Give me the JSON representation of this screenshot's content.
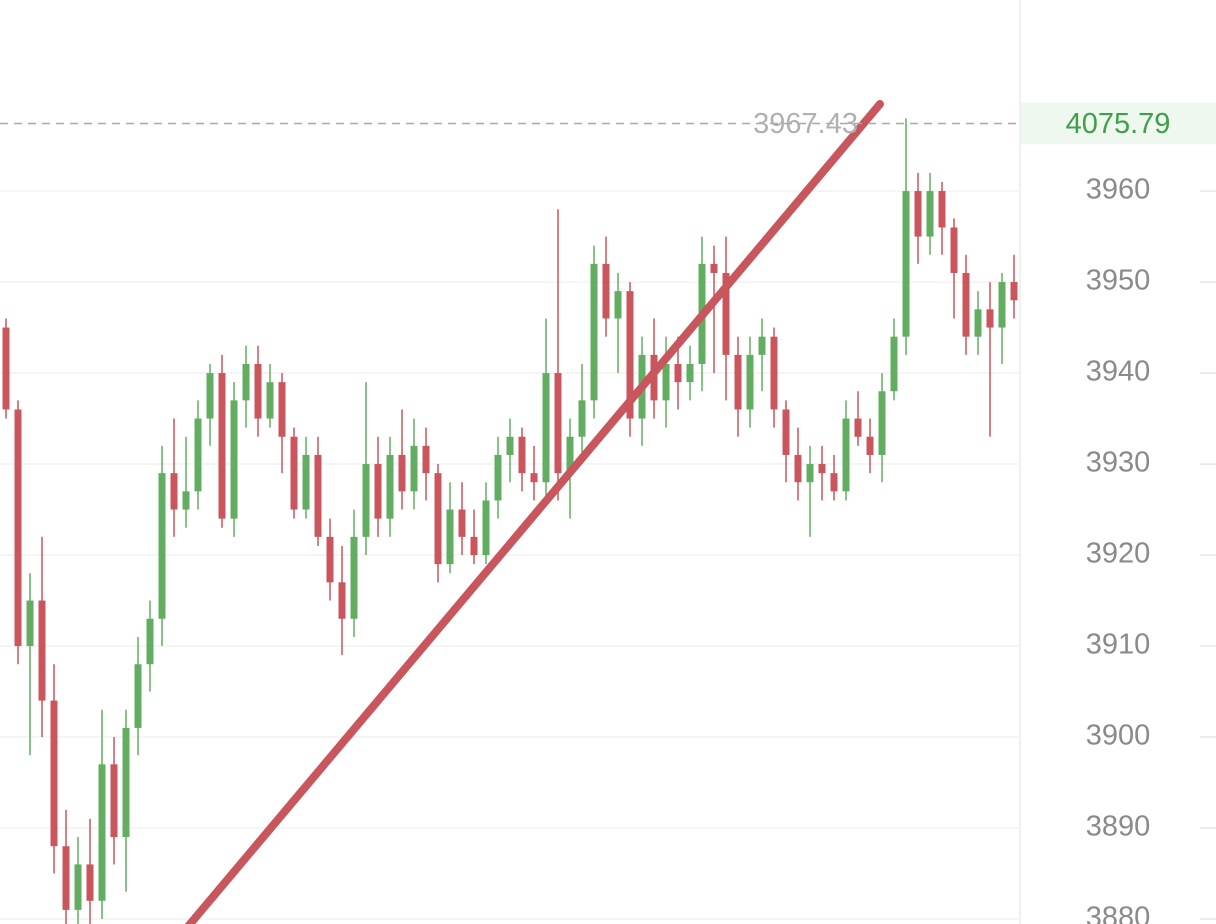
{
  "chart_data": {
    "type": "candlestick",
    "up_color": "#62ad62",
    "down_color": "#c8565c",
    "grid": true,
    "ylim": [
      3879.45,
      3981
    ],
    "yticks": [
      3880,
      3890,
      3900,
      3910,
      3920,
      3930,
      3940,
      3950,
      3960
    ],
    "price_line": {
      "value": 3967.43,
      "label": "3967.43"
    },
    "price_badge": "4075.79",
    "open": [
      3945,
      3936,
      3910,
      3915,
      3904,
      3888,
      3881,
      3886,
      3882,
      3897,
      3889,
      3901,
      3908,
      3913,
      3929,
      3925,
      3927,
      3935,
      3940,
      3924,
      3937,
      3941,
      3935,
      3939,
      3933,
      3925,
      3931,
      3922,
      3917,
      3913,
      3922,
      3930,
      3924,
      3931,
      3927,
      3932,
      3929,
      3919,
      3925,
      3922,
      3920,
      3926,
      3931,
      3933,
      3929,
      3928,
      3940,
      3929,
      3933,
      3937,
      3952,
      3946,
      3949,
      3935,
      3942,
      3937,
      3941,
      3939,
      3941,
      3952,
      3951,
      3942,
      3936,
      3942,
      3944,
      3936,
      3931,
      3928,
      3930,
      3929,
      3927,
      3935,
      3933,
      3931,
      3938,
      3944,
      3960,
      3955,
      3960,
      3956,
      3951,
      3944,
      3947,
      3945,
      3950
    ],
    "high": [
      3946,
      3937,
      3918,
      3922,
      3908,
      3892,
      3889,
      3891,
      3903,
      3900,
      3903,
      3911,
      3915,
      3932,
      3935,
      3933,
      3937,
      3941,
      3942,
      3939,
      3943,
      3943,
      3941,
      3940,
      3934,
      3933,
      3933,
      3924,
      3921,
      3925,
      3939,
      3933,
      3933,
      3936,
      3935,
      3934,
      3930,
      3928,
      3928,
      3925,
      3928,
      3933,
      3935,
      3934,
      3932,
      3946,
      3958,
      3935,
      3941,
      3954,
      3955,
      3951,
      3950,
      3944,
      3946,
      3944,
      3944,
      3943,
      3955,
      3954,
      3955,
      3944,
      3944,
      3946,
      3945,
      3937,
      3934,
      3932,
      3932,
      3931,
      3937,
      3938,
      3935,
      3940,
      3946,
      3968,
      3962,
      3962,
      3961,
      3957,
      3953,
      3949,
      3950,
      3951,
      3953
    ],
    "low": [
      3935,
      3908,
      3898,
      3900,
      3885,
      3878,
      3879,
      3879,
      3880,
      3886,
      3883,
      3898,
      3905,
      3910,
      3922,
      3923,
      3925,
      3932,
      3923,
      3922,
      3934,
      3933,
      3934,
      3929,
      3924,
      3924,
      3921,
      3915,
      3909,
      3911,
      3920,
      3922,
      3922,
      3925,
      3925,
      3926,
      3917,
      3918,
      3920,
      3919,
      3919,
      3924,
      3928,
      3927,
      3926,
      3926,
      3926,
      3924,
      3930,
      3935,
      3944,
      3940,
      3933,
      3932,
      3935,
      3934,
      3936,
      3937,
      3938,
      3940,
      3937,
      3933,
      3934,
      3938,
      3934,
      3928,
      3926,
      3922,
      3926,
      3926,
      3926,
      3932,
      3929,
      3928,
      3937,
      3942,
      3952,
      3953,
      3953,
      3946,
      3942,
      3942,
      3933,
      3941,
      3946
    ],
    "close": [
      3936,
      3910,
      3915,
      3904,
      3888,
      3881,
      3886,
      3882,
      3897,
      3889,
      3901,
      3908,
      3913,
      3929,
      3925,
      3927,
      3935,
      3940,
      3924,
      3937,
      3941,
      3935,
      3939,
      3933,
      3925,
      3931,
      3922,
      3917,
      3913,
      3922,
      3930,
      3924,
      3931,
      3927,
      3932,
      3929,
      3919,
      3925,
      3922,
      3920,
      3926,
      3931,
      3933,
      3929,
      3928,
      3940,
      3929,
      3933,
      3937,
      3952,
      3946,
      3949,
      3935,
      3942,
      3937,
      3941,
      3939,
      3941,
      3952,
      3951,
      3942,
      3936,
      3942,
      3944,
      3936,
      3931,
      3928,
      3930,
      3929,
      3927,
      3935,
      3933,
      3931,
      3938,
      3944,
      3960,
      3955,
      3960,
      3956,
      3951,
      3944,
      3947,
      3945,
      3950,
      3948
    ]
  }
}
